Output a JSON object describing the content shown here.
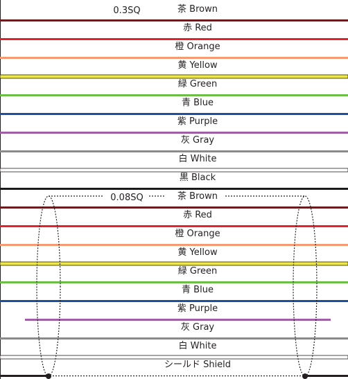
{
  "wire_groups": [
    {
      "gauge": "0.3SQ",
      "wires": [
        {
          "label": "茶 Brown",
          "color": "#6b1c1f",
          "outline": false
        },
        {
          "label": "赤 Red",
          "color": "#e3222b",
          "outline": false
        },
        {
          "label": "橙 Orange",
          "color": "#f59a72",
          "outline": false
        },
        {
          "label": "黄 Yellow",
          "color": "#eee93a",
          "outline": true
        },
        {
          "label": "緑 Green",
          "color": "#6cbf45",
          "outline": false
        },
        {
          "label": "青 Blue",
          "color": "#1c4fa0",
          "outline": false
        },
        {
          "label": "紫 Purple",
          "color": "#a05ea6",
          "outline": false
        },
        {
          "label": "灰 Gray",
          "color": "#8a8a8a",
          "outline": false
        },
        {
          "label": "白 White",
          "color": "#ffffff",
          "outline": true
        },
        {
          "label": "黒 Black",
          "color": "#1a1a1a",
          "outline": false
        }
      ]
    },
    {
      "gauge": "0.08SQ",
      "wires": [
        {
          "label": "茶 Brown",
          "color": "#6b1c1f",
          "outline": false
        },
        {
          "label": "赤 Red",
          "color": "#e3222b",
          "outline": false
        },
        {
          "label": "橙 Orange",
          "color": "#f59a72",
          "outline": false
        },
        {
          "label": "黄 Yellow",
          "color": "#eee93a",
          "outline": true
        },
        {
          "label": "緑 Green",
          "color": "#6cbf45",
          "outline": false
        },
        {
          "label": "青 Blue",
          "color": "#1c4fa0",
          "outline": false
        },
        {
          "label": "紫 Purple",
          "color": "#a05ea6",
          "outline": false
        },
        {
          "label": "灰 Gray",
          "color": "#8a8a8a",
          "outline": false
        },
        {
          "label": "白 White",
          "color": "#ffffff",
          "outline": true
        }
      ]
    }
  ],
  "shield": {
    "label": "シールド Shield",
    "color": "#1a1a1a"
  }
}
